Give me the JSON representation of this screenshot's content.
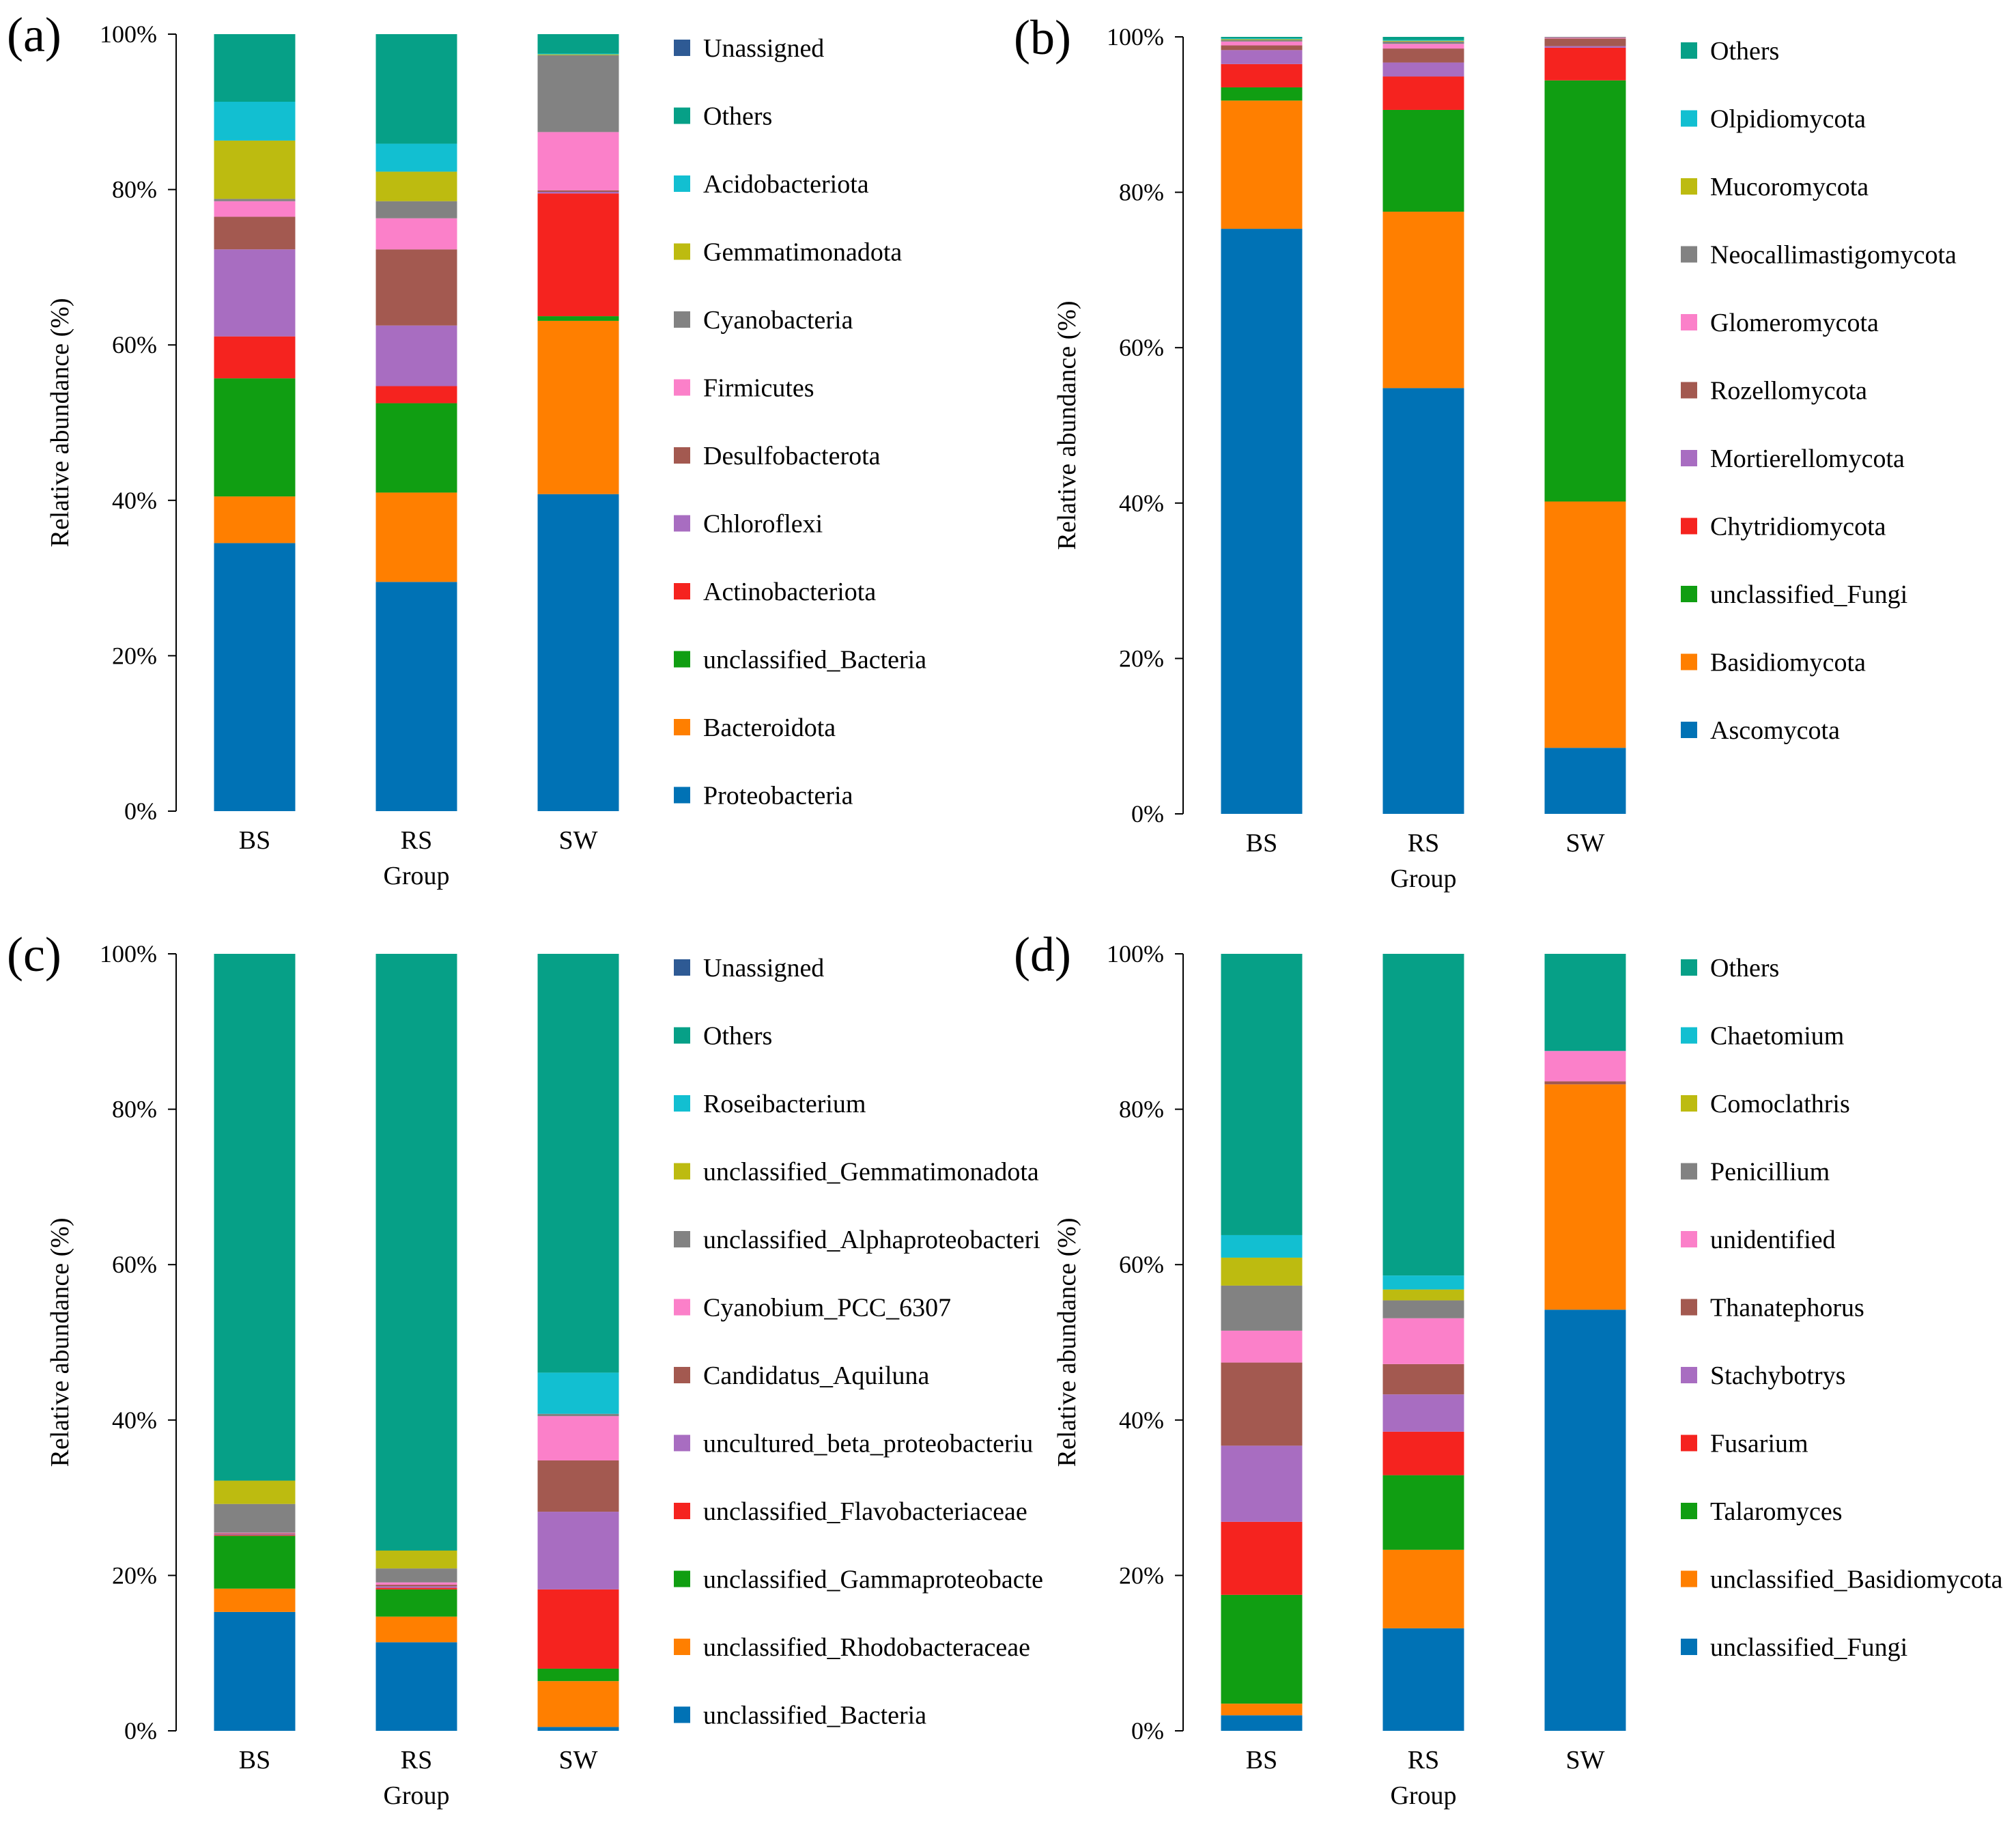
{
  "colors": {
    "blue": "#0072b5",
    "orange": "#ff7f00",
    "green": "#109e12",
    "red": "#f5231f",
    "purple": "#a86dc1",
    "brown": "#a35950",
    "pink": "#fb80c9",
    "gray": "#828282",
    "olive": "#bdbb10",
    "cyan": "#12bfd1",
    "teal": "#06a087",
    "navy": "#2e5a94"
  },
  "chart_data": [
    {
      "type": "bar",
      "stacked": true,
      "panel": "(a)",
      "xlabel": "Group",
      "ylabel": "Relative abundance (%)",
      "ylim": [
        0,
        100
      ],
      "yticks": [
        "0%",
        "20%",
        "40%",
        "60%",
        "80%",
        "100%"
      ],
      "categories": [
        "BS",
        "RS",
        "SW"
      ],
      "series": [
        {
          "name": "Proteobacteria",
          "color": "blue",
          "values": [
            34.5,
            29.5,
            40.8
          ]
        },
        {
          "name": "Bacteroidota",
          "color": "orange",
          "values": [
            6.0,
            11.5,
            22.3
          ]
        },
        {
          "name": "unclassified_Bacteria",
          "color": "green",
          "values": [
            15.2,
            11.5,
            0.6
          ]
        },
        {
          "name": "Actinobacteriota",
          "color": "red",
          "values": [
            5.4,
            2.2,
            15.8
          ]
        },
        {
          "name": "Chloroflexi",
          "color": "purple",
          "values": [
            11.2,
            7.8,
            0.2
          ]
        },
        {
          "name": "Desulfobacterota",
          "color": "brown",
          "values": [
            4.2,
            9.8,
            0.2
          ]
        },
        {
          "name": "Firmicutes",
          "color": "pink",
          "values": [
            2.0,
            4.0,
            7.5
          ]
        },
        {
          "name": "Cyanobacteria",
          "color": "gray",
          "values": [
            0.3,
            2.2,
            9.9
          ]
        },
        {
          "name": "Gemmatimonadota",
          "color": "olive",
          "values": [
            7.5,
            3.8,
            0.1
          ]
        },
        {
          "name": "Acidobacteriota",
          "color": "cyan",
          "values": [
            5.0,
            3.6,
            0.1
          ]
        },
        {
          "name": "Others",
          "color": "teal",
          "values": [
            8.7,
            14.1,
            2.5
          ]
        },
        {
          "name": "Unassigned",
          "color": "navy",
          "values": [
            0.0,
            0.0,
            0.0
          ]
        }
      ]
    },
    {
      "type": "bar",
      "stacked": true,
      "panel": "(b)",
      "xlabel": "Group",
      "ylabel": "Relative abundance (%)",
      "ylim": [
        0,
        100
      ],
      "yticks": [
        "0%",
        "20%",
        "40%",
        "60%",
        "80%",
        "100%"
      ],
      "categories": [
        "BS",
        "RS",
        "SW"
      ],
      "series": [
        {
          "name": "Ascomycota",
          "color": "blue",
          "values": [
            75.3,
            54.8,
            8.5
          ]
        },
        {
          "name": "Basidiomycota",
          "color": "orange",
          "values": [
            16.5,
            22.7,
            31.7
          ]
        },
        {
          "name": "unclassified_Fungi",
          "color": "green",
          "values": [
            1.7,
            13.1,
            54.2
          ]
        },
        {
          "name": "Chytridiomycota",
          "color": "red",
          "values": [
            3.0,
            4.3,
            4.2
          ]
        },
        {
          "name": "Mortierellomycota",
          "color": "purple",
          "values": [
            1.8,
            1.8,
            0.2
          ]
        },
        {
          "name": "Rozellomycota",
          "color": "brown",
          "values": [
            0.6,
            1.8,
            1.0
          ]
        },
        {
          "name": "Glomeromycota",
          "color": "pink",
          "values": [
            0.5,
            0.6,
            0.1
          ]
        },
        {
          "name": "Neocallimastigomycota",
          "color": "gray",
          "values": [
            0.2,
            0.3,
            0.1
          ]
        },
        {
          "name": "Mucoromycota",
          "color": "olive",
          "values": [
            0.1,
            0.1,
            0.0
          ]
        },
        {
          "name": "Olpidiomycota",
          "color": "cyan",
          "values": [
            0.1,
            0.1,
            0.0
          ]
        },
        {
          "name": "Others",
          "color": "teal",
          "values": [
            0.2,
            0.4,
            0.0
          ]
        }
      ]
    },
    {
      "type": "bar",
      "stacked": true,
      "panel": "(c)",
      "xlabel": "Group",
      "ylabel": "Relative abundance (%)",
      "ylim": [
        0,
        100
      ],
      "yticks": [
        "0%",
        "20%",
        "40%",
        "60%",
        "80%",
        "100%"
      ],
      "categories": [
        "BS",
        "RS",
        "SW"
      ],
      "series": [
        {
          "name": "unclassified_Bacteria",
          "color": "blue",
          "values": [
            15.3,
            11.4,
            0.5
          ]
        },
        {
          "name": "unclassified_Rhodobacteraceae",
          "color": "orange",
          "values": [
            3.0,
            3.3,
            5.9
          ]
        },
        {
          "name": "unclassified_Gammaproteobacte",
          "color": "green",
          "values": [
            6.8,
            3.5,
            1.6
          ]
        },
        {
          "name": "unclassified_Flavobacteriaceae",
          "color": "red",
          "values": [
            0.1,
            0.2,
            10.2
          ]
        },
        {
          "name": "uncultured_beta_proteobacteriu",
          "color": "purple",
          "values": [
            0.1,
            0.2,
            10.0
          ]
        },
        {
          "name": "Candidatus_Aquiluna",
          "color": "brown",
          "values": [
            0.1,
            0.2,
            6.6
          ]
        },
        {
          "name": "Cyanobium_PCC_6307",
          "color": "pink",
          "values": [
            0.1,
            0.3,
            5.7
          ]
        },
        {
          "name": "unclassified_Alphaproteobacteri",
          "color": "gray",
          "values": [
            3.7,
            1.8,
            0.3
          ]
        },
        {
          "name": "unclassified_Gemmatimonadota",
          "color": "olive",
          "values": [
            3.0,
            2.3,
            0.0
          ]
        },
        {
          "name": "Roseibacterium",
          "color": "cyan",
          "values": [
            0.0,
            0.0,
            5.3
          ]
        },
        {
          "name": "Others",
          "color": "teal",
          "values": [
            67.8,
            76.8,
            53.9
          ]
        },
        {
          "name": "Unassigned",
          "color": "navy",
          "values": [
            0.0,
            0.0,
            0.0
          ]
        }
      ]
    },
    {
      "type": "bar",
      "stacked": true,
      "panel": "(d)",
      "xlabel": "Group",
      "ylabel": "Relative abundance (%)",
      "ylim": [
        0,
        100
      ],
      "yticks": [
        "0%",
        "20%",
        "40%",
        "60%",
        "80%",
        "100%"
      ],
      "categories": [
        "BS",
        "RS",
        "SW"
      ],
      "series": [
        {
          "name": "unclassified_Fungi",
          "color": "blue",
          "values": [
            2.0,
            13.2,
            54.2
          ]
        },
        {
          "name": "unclassified_Basidiomycota",
          "color": "orange",
          "values": [
            1.5,
            10.1,
            29.0
          ]
        },
        {
          "name": "Talaromyces",
          "color": "green",
          "values": [
            14.0,
            9.6,
            0.0
          ]
        },
        {
          "name": "Fusarium",
          "color": "red",
          "values": [
            9.4,
            5.6,
            0.0
          ]
        },
        {
          "name": "Stachybotrys",
          "color": "purple",
          "values": [
            9.8,
            4.8,
            0.0
          ]
        },
        {
          "name": "Thanatephorus",
          "color": "brown",
          "values": [
            10.7,
            3.9,
            0.4
          ]
        },
        {
          "name": "unidentified",
          "color": "pink",
          "values": [
            4.1,
            5.9,
            3.9
          ]
        },
        {
          "name": "Penicillium",
          "color": "gray",
          "values": [
            5.8,
            2.3,
            0.0
          ]
        },
        {
          "name": "Comoclathris",
          "color": "olive",
          "values": [
            3.6,
            1.4,
            0.0
          ]
        },
        {
          "name": "Chaetomium",
          "color": "cyan",
          "values": [
            2.9,
            1.8,
            0.0
          ]
        },
        {
          "name": "Others",
          "color": "teal",
          "values": [
            36.2,
            41.4,
            12.5
          ]
        }
      ]
    }
  ]
}
